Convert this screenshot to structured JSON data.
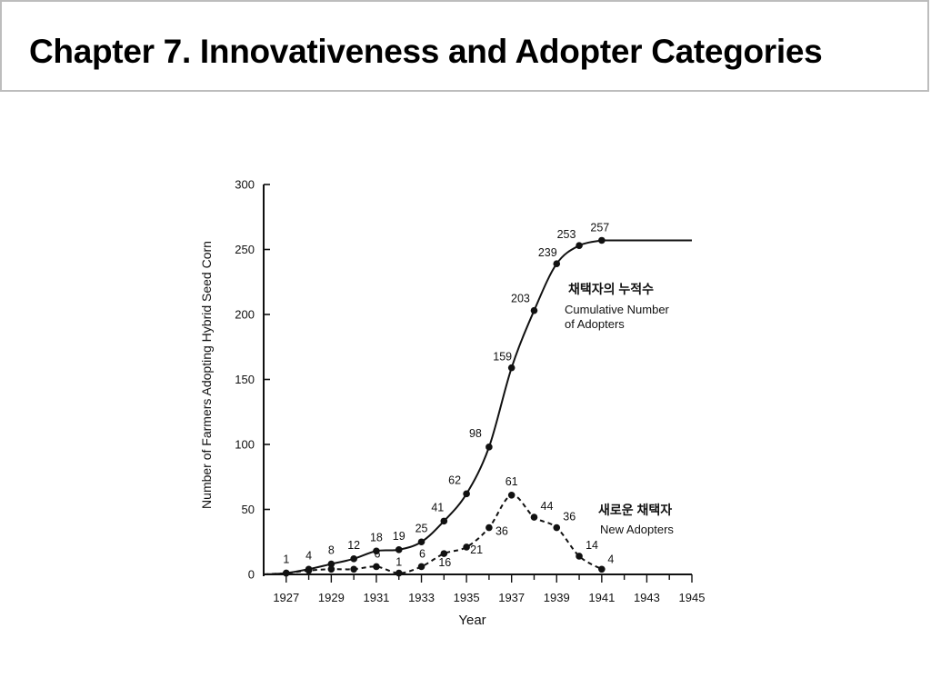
{
  "slide": {
    "title": "Chapter 7. Innovativeness and Adopter Categories"
  },
  "chart_data": {
    "type": "line",
    "xlabel": "Year",
    "ylabel": "Number of Farmers Adopting Hybrid Seed Corn",
    "xlim": [
      1926,
      1945
    ],
    "ylim": [
      0,
      300
    ],
    "x_ticks": [
      "1927",
      "1929",
      "1931",
      "1933",
      "1935",
      "1937",
      "1939",
      "1941",
      "1943",
      "1945"
    ],
    "y_ticks": [
      "0",
      "50",
      "100",
      "150",
      "200",
      "250",
      "300"
    ],
    "grid": false,
    "series": [
      {
        "name_ko": "채택자의 누적수",
        "name": "Cumulative Number of Adopters",
        "name_lines": [
          "Cumulative Number",
          "of Adopters"
        ],
        "style": "solid",
        "x": [
          1927,
          1928,
          1929,
          1930,
          1931,
          1932,
          1933,
          1934,
          1935,
          1936,
          1937,
          1938,
          1939,
          1940,
          1941
        ],
        "values": [
          1,
          4,
          8,
          12,
          18,
          19,
          25,
          41,
          62,
          98,
          159,
          203,
          239,
          253,
          257
        ],
        "extends_to": 1945
      },
      {
        "name_ko": "새로운 채택자",
        "name": "New Adopters",
        "name_lines": [
          "New Adopters"
        ],
        "style": "dashed",
        "x": [
          1927,
          1928,
          1929,
          1930,
          1931,
          1932,
          1933,
          1934,
          1935,
          1936,
          1937,
          1938,
          1939,
          1940,
          1941
        ],
        "values": [
          1,
          3,
          4,
          4,
          6,
          1,
          6,
          16,
          21,
          36,
          61,
          44,
          36,
          14,
          4
        ],
        "labels": [
          "",
          "",
          "",
          "",
          "6",
          "1",
          "6",
          "16",
          "21",
          "36",
          "61",
          "44",
          "36",
          "14",
          "4"
        ]
      }
    ]
  }
}
